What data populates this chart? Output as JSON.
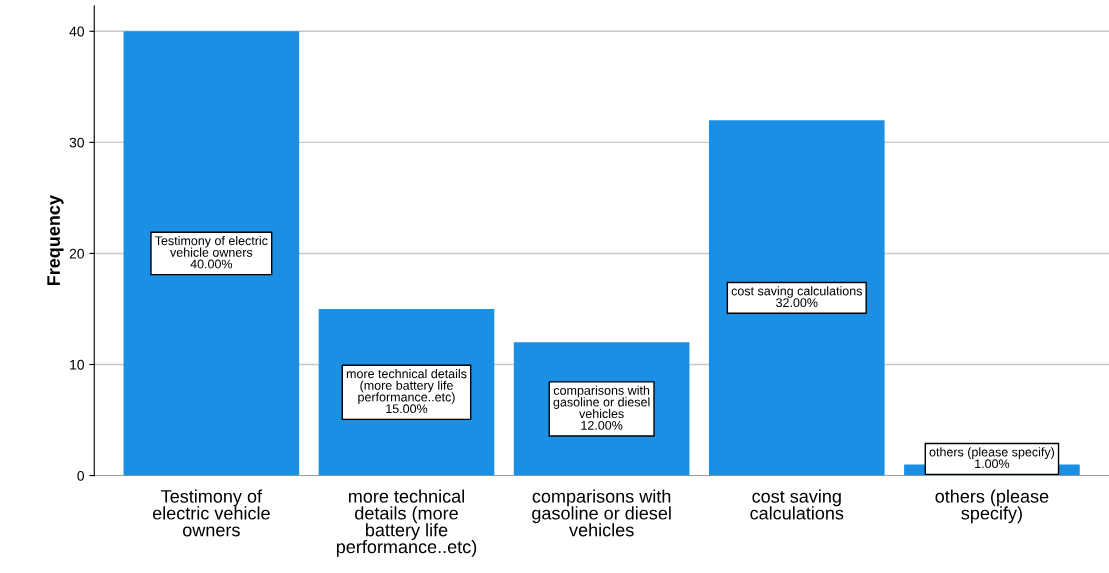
{
  "chart_data": {
    "type": "bar",
    "ylabel": "Frequency",
    "categories": [
      "Testimony of\nelectric vehicle\nowners",
      "more technical\ndetails (more\nbattery life\nperformance..etc)",
      "comparisons with\ngasoline or diesel\nvehicles",
      "cost saving\ncalculations",
      "others (please\nspecify)"
    ],
    "values": [
      40,
      15,
      12,
      32,
      1
    ],
    "color": "#1a8fe3",
    "value_labels": [
      "Testimony of electric\nvehicle owners\n40.00%",
      "more technical details\n(more battery life\nperformance..etc)\n15.00%",
      "comparisons with\ngasoline or diesel\nvehicles\n12.00%",
      "cost saving calculations\n32.00%",
      "others (please specify)\n1.00%"
    ],
    "ylim": [
      0,
      42.3
    ],
    "yticks": [
      0,
      10,
      20,
      30,
      40
    ],
    "grid": "y"
  }
}
